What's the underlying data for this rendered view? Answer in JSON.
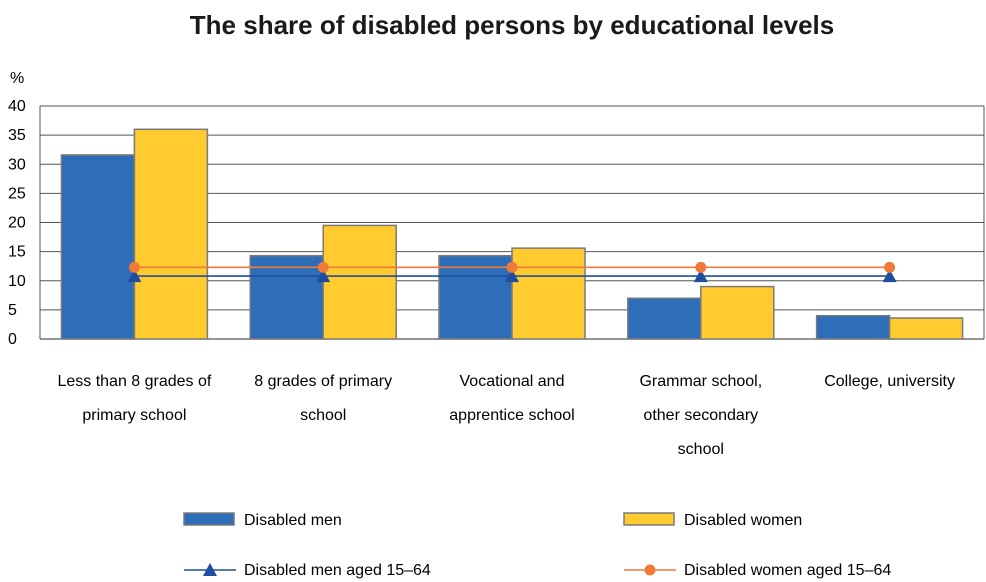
{
  "chart_data": {
    "type": "bar",
    "title": "The share of disabled persons by educational levels",
    "ylabel": "%",
    "ylim": [
      0,
      40
    ],
    "yticks": [
      0,
      5,
      10,
      15,
      20,
      25,
      30,
      35,
      40
    ],
    "grid": true,
    "legend_position": "bottom",
    "categories": [
      [
        "Less than 8 grades of",
        "primary school"
      ],
      [
        "8 grades of primary",
        "school"
      ],
      [
        "Vocational and",
        "apprentice school"
      ],
      [
        "Grammar school,",
        "other secondary",
        "school"
      ],
      [
        "College, university"
      ]
    ],
    "series": [
      {
        "name": "Disabled men",
        "kind": "bar",
        "color": "#2e6db8",
        "values": [
          31.6,
          14.3,
          14.3,
          7.0,
          4.0
        ]
      },
      {
        "name": "Disabled women",
        "kind": "bar",
        "color": "#ffcb2f",
        "values": [
          36.0,
          19.5,
          15.6,
          9.0,
          3.6
        ]
      },
      {
        "name": "Disabled men aged 15–64",
        "kind": "line",
        "marker": "triangle",
        "color": "#1f4ea0",
        "values": [
          10.8,
          10.8,
          10.8,
          10.8,
          10.8
        ]
      },
      {
        "name": "Disabled women aged 15–64",
        "kind": "line",
        "marker": "circle",
        "color": "#f07a3a",
        "values": [
          12.3,
          12.3,
          12.3,
          12.3,
          12.3
        ]
      }
    ]
  }
}
